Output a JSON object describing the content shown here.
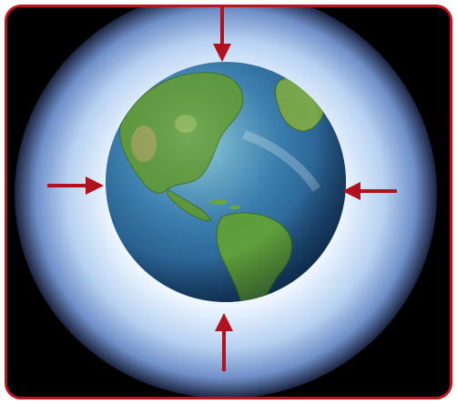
{
  "image": {
    "subject": "earth-globe",
    "frame_color": "#c0121c",
    "arrow_color": "#b0121e",
    "glow_inner": "#ffffff",
    "glow_outer": "#7aa0d8",
    "background": "#000000",
    "ocean_color": "#2f6fa8",
    "land_color": "#4f8f2f",
    "arrow_icons": [
      "arrow-down-icon",
      "arrow-right-icon",
      "arrow-left-icon",
      "arrow-up-icon"
    ]
  }
}
